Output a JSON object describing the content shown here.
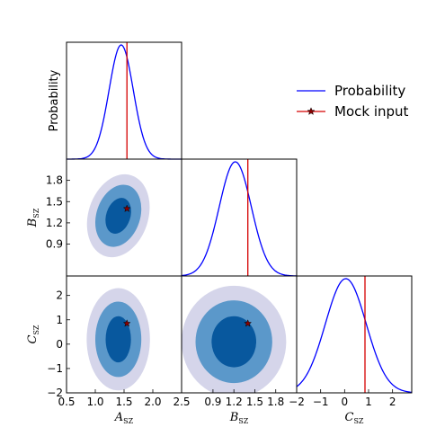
{
  "chart_data": {
    "type": "corner",
    "colors": {
      "probability": "#0000ff",
      "mock_input": "#d50000",
      "contour_1sigma": "#08589e",
      "contour_2sigma": "#5b98ca",
      "contour_3sigma": "#d5d5ea"
    },
    "legend": {
      "placement": "top-right",
      "items": [
        {
          "label": "Probability",
          "marker": "line",
          "color": "#0000ff"
        },
        {
          "label": "Mock input",
          "marker": "line-star",
          "color": "#d50000"
        }
      ]
    },
    "parameters": [
      {
        "key": "A",
        "sym": "A",
        "sub": "SZ",
        "range": [
          0.5,
          2.5
        ],
        "ticks": [
          "0.5",
          "1.0",
          "1.5",
          "2.0",
          "2.5"
        ],
        "tick_values": [
          0.5,
          1.0,
          1.5,
          2.0,
          2.5
        ],
        "mock": 1.55,
        "mean": 1.45,
        "sigma": 0.21
      },
      {
        "key": "B",
        "sym": "B",
        "sub": "SZ",
        "range": [
          0.45,
          2.1
        ],
        "ticks": [
          "0.9",
          "1.2",
          "1.5",
          "1.8"
        ],
        "tick_values": [
          0.9,
          1.2,
          1.5,
          1.8
        ],
        "mock": 1.4,
        "mean": 1.22,
        "sigma": 0.23
      },
      {
        "key": "C",
        "sym": "C",
        "sub": "SZ",
        "range": [
          -2,
          2.8
        ],
        "ticks": [
          "−2",
          "−1",
          "0",
          "1",
          "2"
        ],
        "tick_values": [
          -2,
          -1,
          0,
          1,
          2
        ],
        "mock": 0.85,
        "mean": 0.05,
        "sigma": 0.85
      }
    ],
    "diagonal": [
      {
        "param": "A",
        "ylabel": "Probability",
        "series": "Probability"
      },
      {
        "param": "B",
        "ylabel": "",
        "series": "Probability"
      },
      {
        "param": "C",
        "ylabel": "",
        "series": "Probability"
      }
    ],
    "pairs": [
      {
        "x": "A",
        "y": "B",
        "mock": [
          1.55,
          1.4
        ],
        "center": [
          1.4,
          1.3
        ],
        "levels": [
          {
            "name": "3sigma",
            "rx": 0.52,
            "ry": 0.6,
            "tilt_deg": 18
          },
          {
            "name": "2sigma",
            "rx": 0.38,
            "ry": 0.45,
            "tilt_deg": 18
          },
          {
            "name": "1sigma",
            "rx": 0.21,
            "ry": 0.26,
            "tilt_deg": 18
          }
        ]
      },
      {
        "x": "A",
        "y": "C",
        "mock": [
          1.55,
          0.85
        ],
        "center": [
          1.4,
          0.2
        ],
        "levels": [
          {
            "name": "3sigma",
            "rx": 0.55,
            "ry": 2.1,
            "tilt_deg": 0
          },
          {
            "name": "2sigma",
            "rx": 0.4,
            "ry": 1.55,
            "tilt_deg": 0
          },
          {
            "name": "1sigma",
            "rx": 0.22,
            "ry": 0.95,
            "tilt_deg": 0
          }
        ]
      },
      {
        "x": "B",
        "y": "C",
        "mock": [
          1.4,
          0.85
        ],
        "center": [
          1.2,
          0.1
        ],
        "levels": [
          {
            "name": "3sigma",
            "rx": 0.75,
            "ry": 2.3,
            "tilt_deg": 0
          },
          {
            "name": "2sigma",
            "rx": 0.55,
            "ry": 1.7,
            "tilt_deg": 0
          },
          {
            "name": "1sigma",
            "rx": 0.32,
            "ry": 1.05,
            "tilt_deg": 0
          }
        ]
      }
    ]
  }
}
